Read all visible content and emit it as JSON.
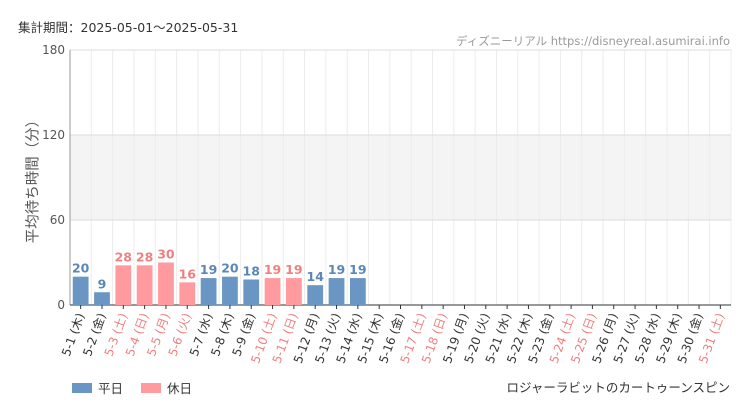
{
  "header": {
    "period_label": "集計期間：2025-05-01〜2025-05-31",
    "source_text": "ディズニーリアル https://disneyreal.asumirai.info"
  },
  "footer": {
    "attraction_name": "ロジャーラビットのカートゥーンスピン"
  },
  "colors": {
    "weekday": "#6a96c4",
    "weekday_label": "#5a86b8",
    "holiday": "#ff9a9e",
    "holiday_label": "#f08080",
    "band": "#f4f4f4"
  },
  "chart_data": {
    "type": "bar",
    "ylabel": "平均待ち時間（分）",
    "ylim": [
      0,
      180
    ],
    "yticks": [
      0,
      60,
      120,
      180
    ],
    "shaded_band": [
      60,
      120
    ],
    "grid": true,
    "legend_position": "bottom-left",
    "categories": [
      "5-1 (木)",
      "5-2 (金)",
      "5-3 (土)",
      "5-4 (日)",
      "5-5 (月)",
      "5-6 (火)",
      "5-7 (水)",
      "5-8 (木)",
      "5-9 (金)",
      "5-10 (土)",
      "5-11 (日)",
      "5-12 (月)",
      "5-13 (火)",
      "5-14 (水)",
      "5-15 (木)",
      "5-16 (金)",
      "5-17 (土)",
      "5-18 (日)",
      "5-19 (月)",
      "5-20 (火)",
      "5-21 (水)",
      "5-22 (木)",
      "5-23 (金)",
      "5-24 (土)",
      "5-25 (日)",
      "5-26 (月)",
      "5-27 (火)",
      "5-28 (水)",
      "5-29 (木)",
      "5-30 (金)",
      "5-31 (土)"
    ],
    "values": [
      20,
      9,
      28,
      28,
      30,
      16,
      19,
      20,
      18,
      19,
      19,
      14,
      19,
      19,
      null,
      null,
      null,
      null,
      null,
      null,
      null,
      null,
      null,
      null,
      null,
      null,
      null,
      null,
      null,
      null,
      null
    ],
    "day_type": [
      "weekday",
      "weekday",
      "holiday",
      "holiday",
      "holiday",
      "holiday",
      "weekday",
      "weekday",
      "weekday",
      "holiday",
      "holiday",
      "weekday",
      "weekday",
      "weekday",
      "weekday",
      "weekday",
      "holiday",
      "holiday",
      "weekday",
      "weekday",
      "weekday",
      "weekday",
      "weekday",
      "holiday",
      "holiday",
      "weekday",
      "weekday",
      "weekday",
      "weekday",
      "weekday",
      "holiday"
    ],
    "series": [
      {
        "name": "平日",
        "color": "#6a96c4"
      },
      {
        "name": "休日",
        "color": "#ff9a9e"
      }
    ]
  }
}
